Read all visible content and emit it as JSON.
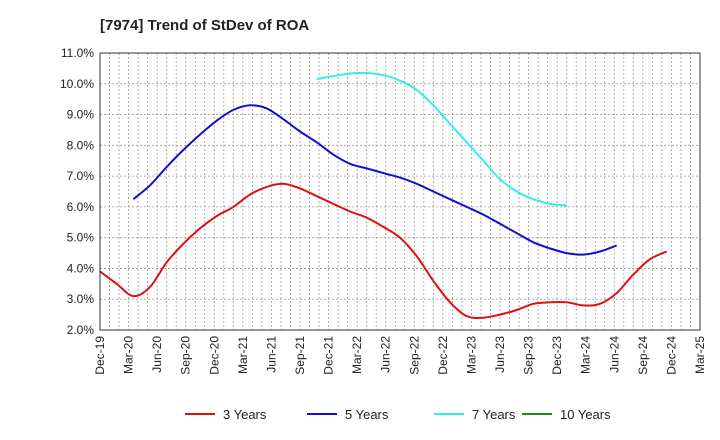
{
  "chart_data": {
    "type": "line",
    "title": "[7974]  Trend of StDev of ROA",
    "xlabel": "",
    "ylabel": "",
    "x_tick_labels": [
      "Dec-19",
      "Mar-20",
      "Jun-20",
      "Sep-20",
      "Dec-20",
      "Mar-21",
      "Jun-21",
      "Sep-21",
      "Dec-21",
      "Mar-22",
      "Jun-22",
      "Sep-22",
      "Dec-22",
      "Mar-23",
      "Jun-23",
      "Sep-23",
      "Dec-23",
      "Mar-24",
      "Jun-24",
      "Sep-24",
      "Dec-24",
      "Mar-25"
    ],
    "y_tick_labels": [
      "2.0%",
      "3.0%",
      "4.0%",
      "5.0%",
      "6.0%",
      "7.0%",
      "8.0%",
      "9.0%",
      "10.0%",
      "11.0%"
    ],
    "ylim": [
      2.0,
      11.0
    ],
    "y_unit": "%",
    "grid": true,
    "legend_position": "bottom",
    "series": [
      {
        "name": "3 Years",
        "color": "#dd1111",
        "values": [
          3.9,
          3.5,
          3.1,
          3.4,
          4.2,
          4.8,
          5.3,
          5.7,
          6.0,
          6.4,
          6.65,
          6.75,
          6.6,
          6.35,
          6.1,
          5.85,
          5.65,
          5.35,
          5.0,
          4.4,
          3.6,
          2.9,
          2.45,
          2.4,
          2.5,
          2.65,
          2.85,
          2.9,
          2.9,
          2.8,
          2.85,
          3.2,
          3.8,
          4.3,
          4.55,
          null
        ]
      },
      {
        "name": "5 Years",
        "color": "#1111cc",
        "values": [
          null,
          null,
          6.25,
          6.7,
          7.3,
          7.85,
          8.35,
          8.8,
          9.15,
          9.3,
          9.2,
          8.85,
          8.45,
          8.1,
          7.7,
          7.4,
          7.25,
          7.1,
          6.95,
          6.75,
          6.5,
          6.25,
          6.0,
          5.75,
          5.45,
          5.15,
          4.85,
          4.65,
          4.5,
          4.45,
          4.55,
          4.75,
          null,
          null,
          null,
          null
        ]
      },
      {
        "name": "7 Years",
        "color": "#33eeee",
        "values": [
          null,
          null,
          null,
          null,
          null,
          null,
          null,
          null,
          null,
          null,
          null,
          null,
          null,
          10.15,
          10.25,
          10.33,
          10.35,
          10.28,
          10.1,
          9.8,
          9.3,
          8.7,
          8.1,
          7.5,
          6.9,
          6.5,
          6.25,
          6.1,
          6.05,
          null,
          null,
          null,
          null,
          null,
          null,
          null
        ]
      },
      {
        "name": "10 Years",
        "color": "#228822",
        "values": []
      }
    ]
  }
}
